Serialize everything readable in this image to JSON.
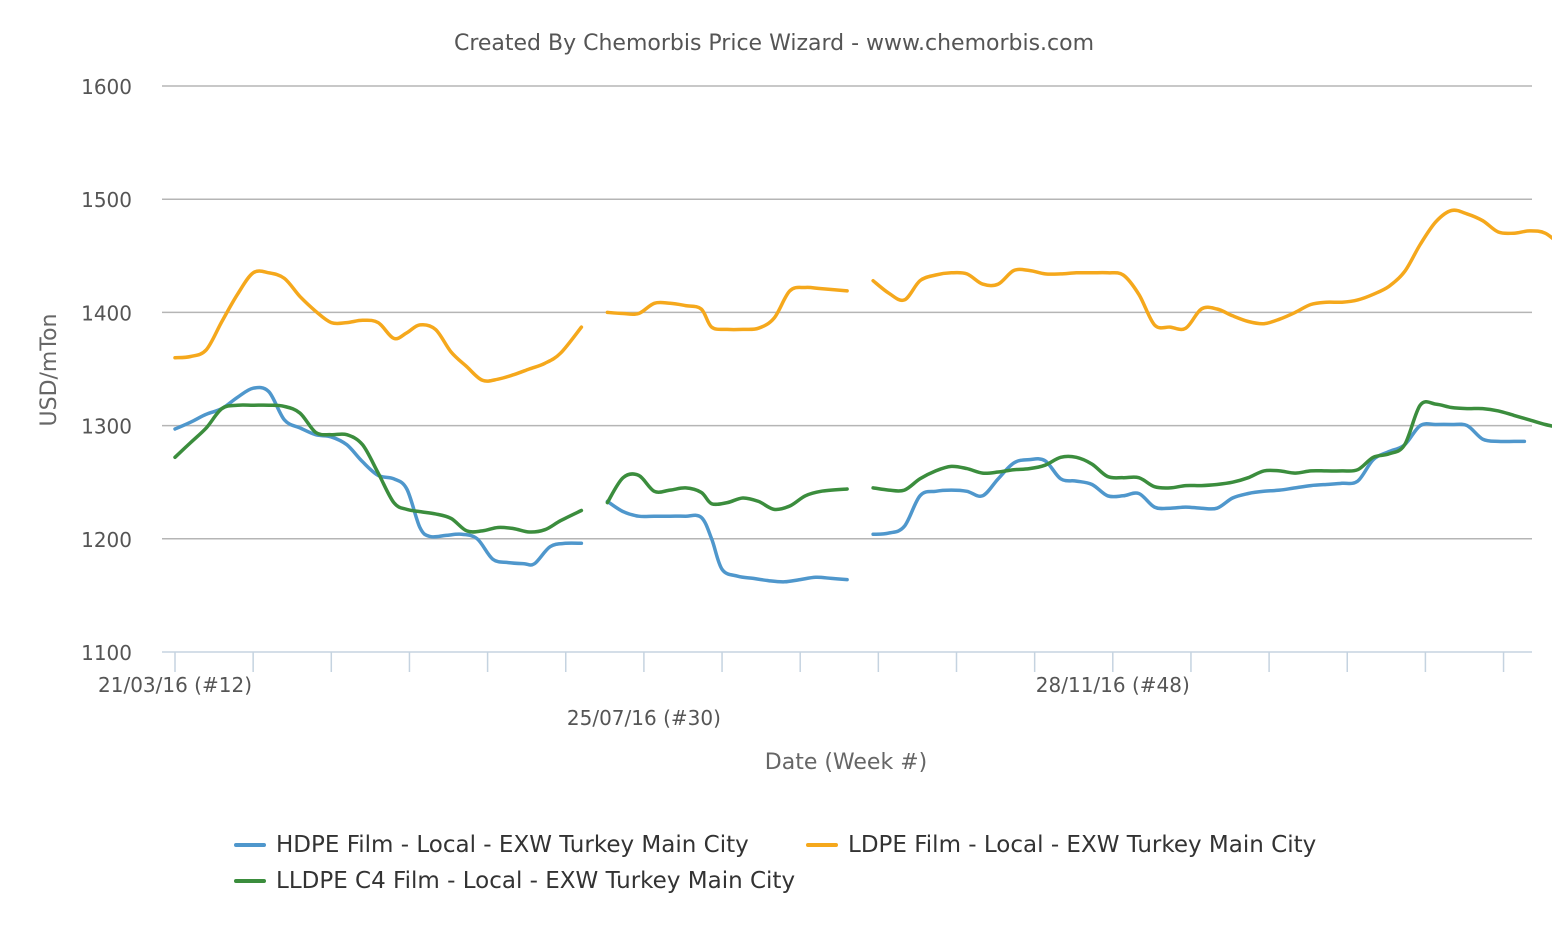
{
  "chart_data": {
    "type": "line",
    "title": "Created By Chemorbis Price Wizard - www.chemorbis.com",
    "xlabel": "Date (Week #)",
    "ylabel": "USD/mTon",
    "ylim": [
      1100,
      1600
    ],
    "yticks": [
      1100,
      1200,
      1300,
      1400,
      1500,
      1600
    ],
    "grid": true,
    "legend_position": "bottom",
    "week_range": [
      12,
      64
    ],
    "x_tick_labels": [
      {
        "week": 12,
        "label": "21/03/16 (#12)"
      },
      {
        "week": 30,
        "label": "25/07/16 (#30)"
      },
      {
        "week": 48,
        "label": "28/11/16 (#48)"
      }
    ],
    "series": [
      {
        "name": "HDPE Film - Local - EXW Turkey Main City",
        "color": "#4f97cc",
        "points": [
          [
            12.0,
            1297
          ],
          [
            12.6,
            1303
          ],
          [
            13.2,
            1310
          ],
          [
            13.8,
            1315
          ],
          [
            14.4,
            1325
          ],
          [
            15.0,
            1333
          ],
          [
            15.6,
            1330
          ],
          [
            16.2,
            1305
          ],
          [
            16.8,
            1298
          ],
          [
            17.4,
            1292
          ],
          [
            18.0,
            1290
          ],
          [
            18.6,
            1283
          ],
          [
            19.2,
            1268
          ],
          [
            19.8,
            1256
          ],
          [
            20.4,
            1253
          ],
          [
            20.9,
            1244
          ],
          [
            21.4,
            1210
          ],
          [
            21.8,
            1202
          ],
          [
            22.4,
            1203
          ],
          [
            23.0,
            1204
          ],
          [
            23.6,
            1200
          ],
          [
            24.2,
            1182
          ],
          [
            24.8,
            1179
          ],
          [
            25.4,
            1178
          ],
          [
            25.8,
            1178
          ],
          [
            26.4,
            1193
          ],
          [
            27.0,
            1196
          ],
          [
            27.6,
            1196
          ],
          null,
          [
            28.6,
            1233
          ],
          [
            29.2,
            1224
          ],
          [
            29.8,
            1220
          ],
          [
            30.4,
            1220
          ],
          [
            31.0,
            1220
          ],
          [
            31.6,
            1220
          ],
          [
            32.2,
            1219
          ],
          [
            32.6,
            1200
          ],
          [
            33.0,
            1173
          ],
          [
            33.6,
            1167
          ],
          [
            34.2,
            1165
          ],
          [
            34.8,
            1163
          ],
          [
            35.4,
            1162
          ],
          [
            36.0,
            1164
          ],
          [
            36.6,
            1166
          ],
          [
            37.2,
            1165
          ],
          [
            37.8,
            1164
          ],
          null,
          [
            38.8,
            1204
          ],
          [
            39.4,
            1205
          ],
          [
            40.0,
            1211
          ],
          [
            40.6,
            1238
          ],
          [
            41.2,
            1242
          ],
          [
            41.8,
            1243
          ],
          [
            42.4,
            1242
          ],
          [
            43.0,
            1238
          ],
          [
            43.6,
            1253
          ],
          [
            44.2,
            1267
          ],
          [
            44.8,
            1270
          ],
          [
            45.4,
            1269
          ],
          [
            46.0,
            1253
          ],
          [
            46.6,
            1251
          ],
          [
            47.2,
            1248
          ],
          [
            47.8,
            1238
          ],
          [
            48.4,
            1238
          ],
          [
            49.0,
            1240
          ],
          [
            49.6,
            1228
          ],
          [
            50.2,
            1227
          ],
          [
            50.8,
            1228
          ],
          [
            51.4,
            1227
          ],
          [
            52.0,
            1227
          ],
          [
            52.6,
            1236
          ],
          [
            53.2,
            1240
          ],
          [
            53.8,
            1242
          ],
          [
            54.4,
            1243
          ],
          [
            55.0,
            1245
          ],
          [
            55.6,
            1247
          ],
          [
            56.2,
            1248
          ],
          [
            56.8,
            1249
          ],
          [
            57.4,
            1251
          ],
          [
            58.0,
            1270
          ],
          [
            58.6,
            1277
          ],
          [
            59.2,
            1283
          ],
          [
            59.8,
            1300
          ],
          [
            60.4,
            1301
          ],
          [
            61.0,
            1301
          ],
          [
            61.6,
            1300
          ],
          [
            62.2,
            1288
          ],
          [
            62.8,
            1286
          ],
          [
            63.4,
            1286
          ],
          [
            63.8,
            1286
          ]
        ]
      },
      {
        "name": "LDPE Film - Local - EXW Turkey Main City",
        "color": "#f5a81c",
        "points": [
          [
            12.0,
            1360
          ],
          [
            12.6,
            1361
          ],
          [
            13.2,
            1367
          ],
          [
            13.8,
            1392
          ],
          [
            14.4,
            1416
          ],
          [
            15.0,
            1435
          ],
          [
            15.6,
            1435
          ],
          [
            16.2,
            1430
          ],
          [
            16.8,
            1414
          ],
          [
            17.4,
            1401
          ],
          [
            18.0,
            1391
          ],
          [
            18.6,
            1391
          ],
          [
            19.2,
            1393
          ],
          [
            19.8,
            1391
          ],
          [
            20.4,
            1377
          ],
          [
            20.9,
            1382
          ],
          [
            21.4,
            1389
          ],
          [
            22.0,
            1385
          ],
          [
            22.6,
            1365
          ],
          [
            23.2,
            1352
          ],
          [
            23.8,
            1340
          ],
          [
            24.4,
            1341
          ],
          [
            25.0,
            1345
          ],
          [
            25.6,
            1350
          ],
          [
            26.2,
            1355
          ],
          [
            26.8,
            1364
          ],
          [
            27.6,
            1387
          ],
          null,
          [
            28.6,
            1400
          ],
          [
            29.2,
            1399
          ],
          [
            29.8,
            1399
          ],
          [
            30.4,
            1408
          ],
          [
            31.0,
            1408
          ],
          [
            31.6,
            1406
          ],
          [
            32.2,
            1403
          ],
          [
            32.6,
            1387
          ],
          [
            33.2,
            1385
          ],
          [
            33.8,
            1385
          ],
          [
            34.4,
            1386
          ],
          [
            35.0,
            1395
          ],
          [
            35.6,
            1419
          ],
          [
            36.2,
            1422
          ],
          [
            36.8,
            1421
          ],
          [
            37.8,
            1419
          ],
          null,
          [
            38.8,
            1428
          ],
          [
            39.4,
            1417
          ],
          [
            40.0,
            1411
          ],
          [
            40.6,
            1428
          ],
          [
            41.2,
            1433
          ],
          [
            41.8,
            1435
          ],
          [
            42.4,
            1434
          ],
          [
            43.0,
            1425
          ],
          [
            43.6,
            1425
          ],
          [
            44.2,
            1437
          ],
          [
            44.8,
            1437
          ],
          [
            45.4,
            1434
          ],
          [
            46.0,
            1434
          ],
          [
            46.6,
            1435
          ],
          [
            47.2,
            1435
          ],
          [
            47.8,
            1435
          ],
          [
            48.4,
            1433
          ],
          [
            49.0,
            1416
          ],
          [
            49.6,
            1389
          ],
          [
            50.2,
            1387
          ],
          [
            50.8,
            1386
          ],
          [
            51.4,
            1403
          ],
          [
            52.0,
            1403
          ],
          [
            52.6,
            1397
          ],
          [
            53.2,
            1392
          ],
          [
            53.8,
            1390
          ],
          [
            54.4,
            1394
          ],
          [
            55.0,
            1400
          ],
          [
            55.6,
            1407
          ],
          [
            56.2,
            1409
          ],
          [
            56.8,
            1409
          ],
          [
            57.4,
            1411
          ],
          [
            58.0,
            1416
          ],
          [
            58.6,
            1423
          ],
          [
            59.2,
            1436
          ],
          [
            59.8,
            1460
          ],
          [
            60.4,
            1480
          ],
          [
            61.0,
            1490
          ],
          [
            61.6,
            1487
          ],
          [
            62.2,
            1481
          ],
          [
            62.8,
            1471
          ],
          [
            63.4,
            1470
          ],
          [
            64.0,
            1472
          ],
          [
            64.6,
            1470
          ],
          [
            65.2,
            1459
          ]
        ]
      },
      {
        "name": "LLDPE C4 Film - Local - EXW Turkey Main City",
        "color": "#3b8d3d",
        "points": [
          [
            12.0,
            1272
          ],
          [
            12.6,
            1285
          ],
          [
            13.2,
            1298
          ],
          [
            13.8,
            1315
          ],
          [
            14.4,
            1318
          ],
          [
            15.0,
            1318
          ],
          [
            15.6,
            1318
          ],
          [
            16.2,
            1317
          ],
          [
            16.8,
            1311
          ],
          [
            17.4,
            1294
          ],
          [
            18.0,
            1292
          ],
          [
            18.6,
            1292
          ],
          [
            19.2,
            1283
          ],
          [
            19.8,
            1258
          ],
          [
            20.4,
            1232
          ],
          [
            20.9,
            1226
          ],
          [
            21.4,
            1224
          ],
          [
            22.0,
            1222
          ],
          [
            22.6,
            1218
          ],
          [
            23.2,
            1207
          ],
          [
            23.8,
            1207
          ],
          [
            24.4,
            1210
          ],
          [
            25.0,
            1209
          ],
          [
            25.6,
            1206
          ],
          [
            26.2,
            1208
          ],
          [
            26.8,
            1216
          ],
          [
            27.6,
            1225
          ],
          null,
          [
            28.6,
            1232
          ],
          [
            29.2,
            1254
          ],
          [
            29.8,
            1256
          ],
          [
            30.4,
            1242
          ],
          [
            31.0,
            1243
          ],
          [
            31.6,
            1245
          ],
          [
            32.2,
            1241
          ],
          [
            32.6,
            1231
          ],
          [
            33.2,
            1232
          ],
          [
            33.8,
            1236
          ],
          [
            34.4,
            1233
          ],
          [
            35.0,
            1226
          ],
          [
            35.6,
            1229
          ],
          [
            36.2,
            1238
          ],
          [
            36.8,
            1242
          ],
          [
            37.8,
            1244
          ],
          null,
          [
            38.8,
            1245
          ],
          [
            39.4,
            1243
          ],
          [
            40.0,
            1243
          ],
          [
            40.6,
            1253
          ],
          [
            41.2,
            1260
          ],
          [
            41.8,
            1264
          ],
          [
            42.4,
            1262
          ],
          [
            43.0,
            1258
          ],
          [
            43.6,
            1259
          ],
          [
            44.2,
            1261
          ],
          [
            44.8,
            1262
          ],
          [
            45.4,
            1265
          ],
          [
            46.0,
            1272
          ],
          [
            46.6,
            1272
          ],
          [
            47.2,
            1266
          ],
          [
            47.8,
            1255
          ],
          [
            48.4,
            1254
          ],
          [
            49.0,
            1254
          ],
          [
            49.6,
            1246
          ],
          [
            50.2,
            1245
          ],
          [
            50.8,
            1247
          ],
          [
            51.4,
            1247
          ],
          [
            52.0,
            1248
          ],
          [
            52.6,
            1250
          ],
          [
            53.2,
            1254
          ],
          [
            53.8,
            1260
          ],
          [
            54.4,
            1260
          ],
          [
            55.0,
            1258
          ],
          [
            55.6,
            1260
          ],
          [
            56.2,
            1260
          ],
          [
            56.8,
            1260
          ],
          [
            57.4,
            1261
          ],
          [
            58.0,
            1272
          ],
          [
            58.6,
            1275
          ],
          [
            59.2,
            1283
          ],
          [
            59.8,
            1318
          ],
          [
            60.4,
            1319
          ],
          [
            61.0,
            1316
          ],
          [
            61.6,
            1315
          ],
          [
            62.2,
            1315
          ],
          [
            62.8,
            1313
          ],
          [
            63.4,
            1309
          ],
          [
            64.0,
            1305
          ],
          [
            64.6,
            1301
          ],
          [
            65.2,
            1298
          ]
        ]
      }
    ]
  }
}
